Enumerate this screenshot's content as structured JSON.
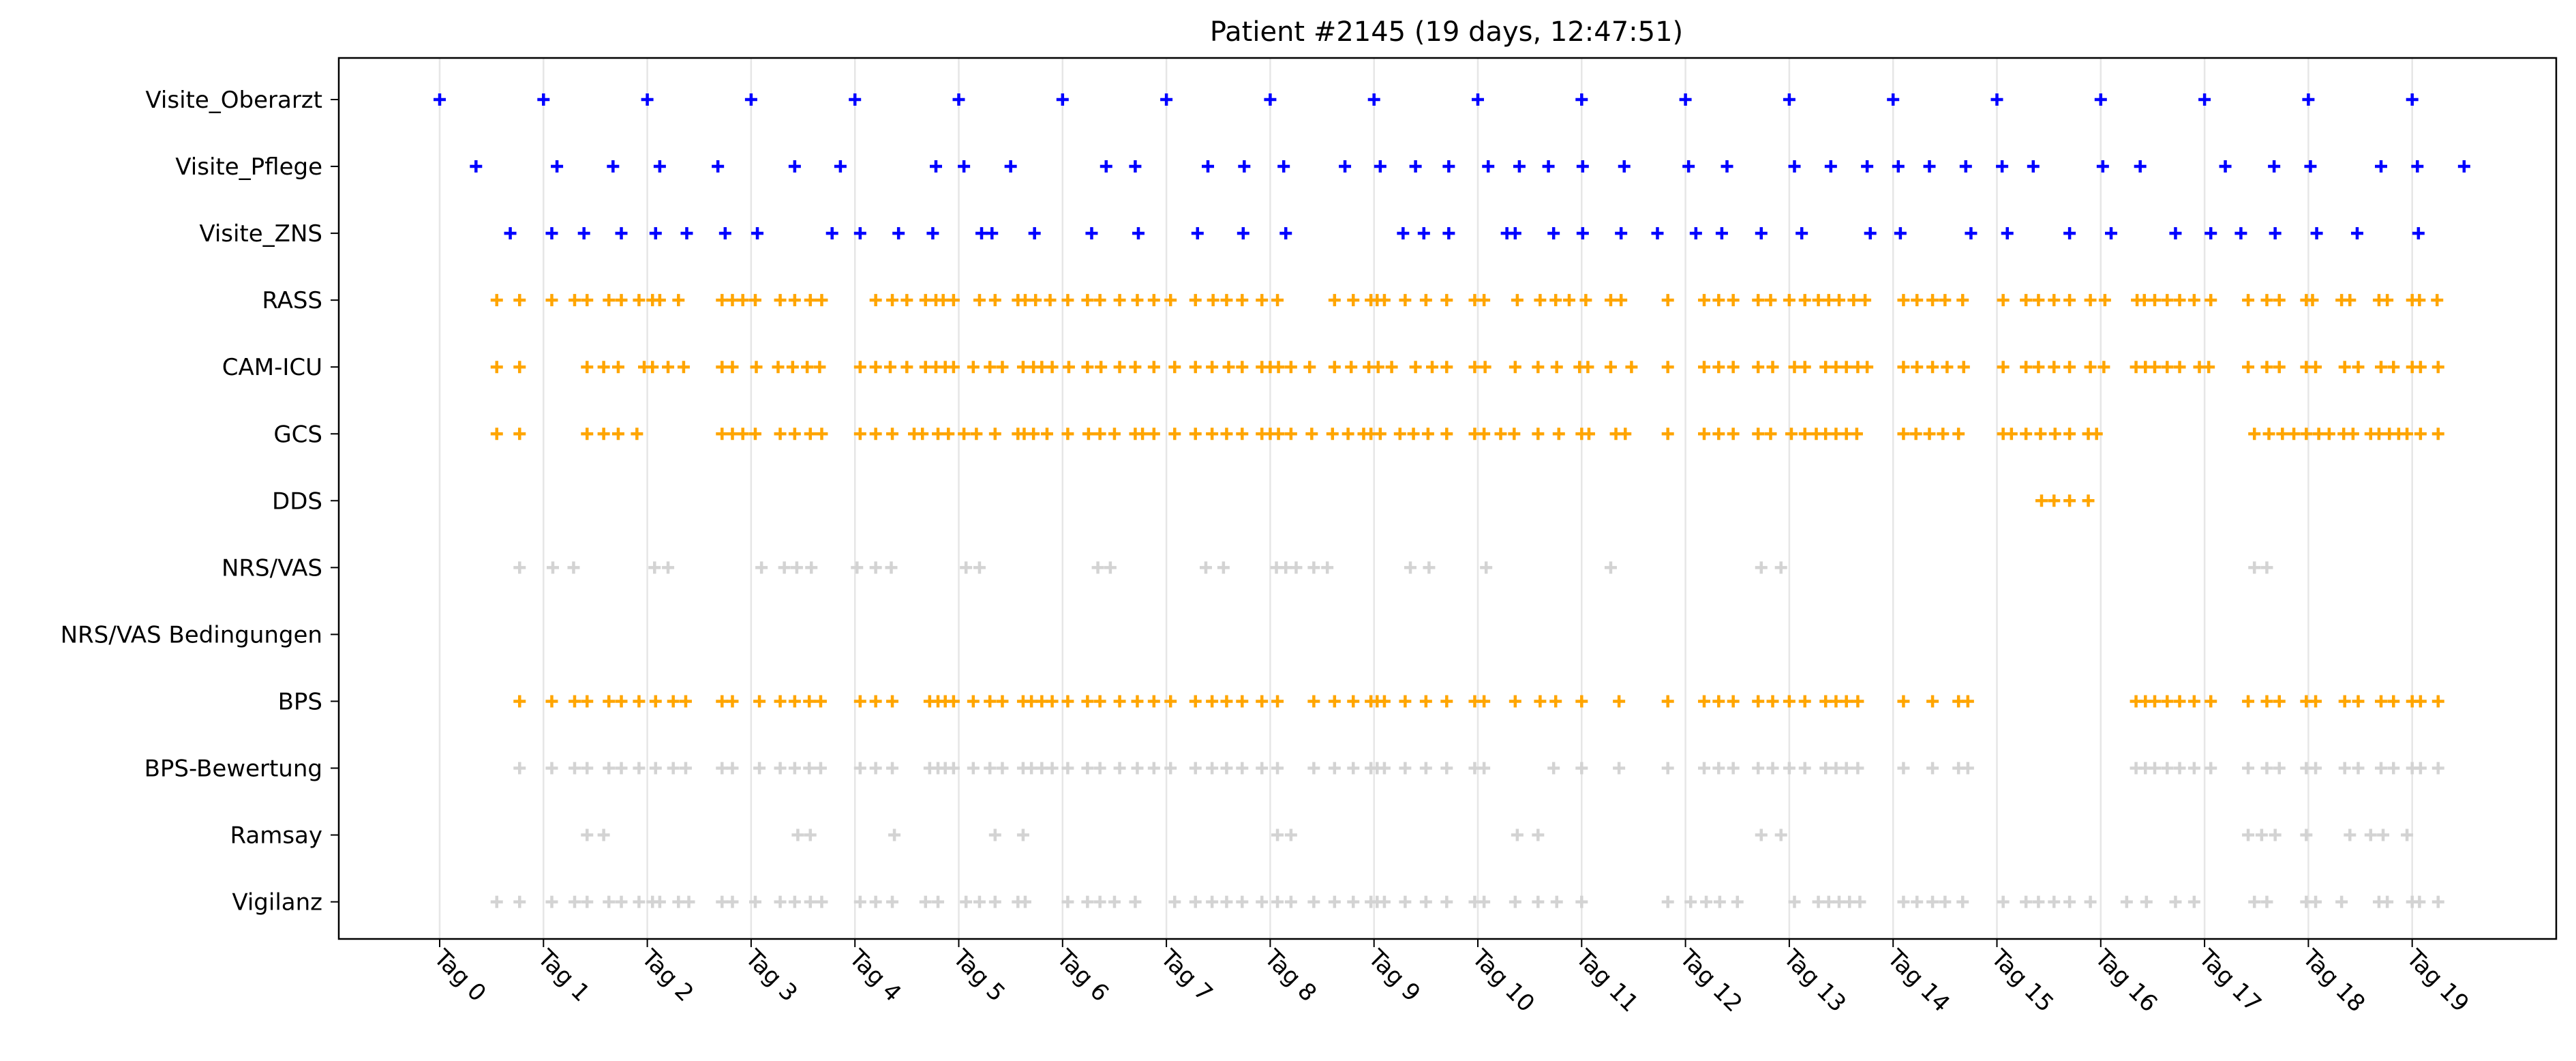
{
  "chart_data": {
    "type": "scatter",
    "title": "Patient #2145 (19 days, 12:47:51)",
    "xlabel": "",
    "ylabel": "",
    "x_unit": "days",
    "xlim": [
      -0.98,
      20.48
    ],
    "grid": "vertical lines at each day",
    "marker": "+",
    "x_tick_labels": [
      "Tag 0",
      "Tag 1",
      "Tag 2",
      "Tag 3",
      "Tag 4",
      "Tag 5",
      "Tag 6",
      "Tag 7",
      "Tag 8",
      "Tag 9",
      "Tag 10",
      "Tag 11",
      "Tag 12",
      "Tag 13",
      "Tag 14",
      "Tag 15",
      "Tag 16",
      "Tag 17",
      "Tag 18",
      "Tag 19"
    ],
    "x_ticks": [
      0,
      1,
      2,
      3,
      4,
      5,
      6,
      7,
      8,
      9,
      10,
      11,
      12,
      13,
      14,
      15,
      16,
      17,
      18,
      19
    ],
    "colors": {
      "visit": "#0000ff",
      "score": "#ffa500",
      "secondary": "#d3d3d3",
      "grid": "#e6e6e6"
    },
    "series": [
      {
        "name": "Visite_Oberarzt",
        "color": "#0000ff",
        "x": [
          0,
          1,
          2,
          3,
          4,
          5,
          6,
          7,
          8,
          9,
          10,
          11,
          12,
          13,
          14,
          15,
          16,
          17,
          18,
          19
        ]
      },
      {
        "name": "Visite_Pflege",
        "color": "#0000ff",
        "x": [
          0.35,
          1.13,
          1.67,
          2.12,
          2.68,
          3.42,
          3.86,
          4.78,
          5.05,
          5.5,
          6.42,
          6.7,
          7.4,
          7.75,
          8.13,
          8.72,
          9.06,
          9.4,
          9.72,
          10.1,
          10.4,
          10.68,
          11.01,
          11.41,
          12.03,
          12.4,
          13.05,
          13.4,
          13.75,
          14.05,
          14.35,
          14.7,
          15.05,
          15.35,
          16.02,
          16.38,
          17.2,
          17.67,
          18.02,
          18.7,
          19.05,
          19.5
        ]
      },
      {
        "name": "Visite_ZNS",
        "color": "#0000ff",
        "x": [
          0.68,
          1.08,
          1.39,
          1.75,
          2.08,
          2.38,
          2.75,
          3.06,
          3.78,
          4.05,
          4.42,
          4.75,
          5.22,
          5.32,
          5.73,
          6.28,
          6.73,
          7.3,
          7.74,
          8.15,
          9.28,
          9.48,
          9.72,
          10.28,
          10.36,
          10.73,
          11.01,
          11.38,
          11.73,
          12.1,
          12.35,
          12.73,
          13.12,
          13.78,
          14.07,
          14.75,
          15.1,
          15.7,
          16.1,
          16.72,
          17.06,
          17.35,
          17.68,
          18.08,
          18.47,
          19.06
        ]
      },
      {
        "name": "RASS",
        "color": "#ffa500",
        "x": [
          0.55,
          0.77,
          1.08,
          1.3,
          1.42,
          1.63,
          1.75,
          1.92,
          2.05,
          2.12,
          2.3,
          2.72,
          2.82,
          2.92,
          3.04,
          3.28,
          3.42,
          3.57,
          3.68,
          4.2,
          4.36,
          4.5,
          4.68,
          4.78,
          4.85,
          4.95,
          5.2,
          5.35,
          5.57,
          5.64,
          5.74,
          5.88,
          6.05,
          6.24,
          6.36,
          6.55,
          6.72,
          6.88,
          7.04,
          7.28,
          7.45,
          7.58,
          7.73,
          7.92,
          8.07,
          8.62,
          8.8,
          8.97,
          9.03,
          9.1,
          9.3,
          9.5,
          9.7,
          9.97,
          10.06,
          10.38,
          10.6,
          10.75,
          10.88,
          11.04,
          11.28,
          11.38,
          11.83,
          12.18,
          12.32,
          12.46,
          12.7,
          12.82,
          13.0,
          13.15,
          13.28,
          13.38,
          13.48,
          13.62,
          13.73,
          14.1,
          14.23,
          14.38,
          14.5,
          14.67,
          15.06,
          15.28,
          15.4,
          15.55,
          15.7,
          15.9,
          16.04,
          16.35,
          16.42,
          16.52,
          16.64,
          16.76,
          16.9,
          17.06,
          17.42,
          17.6,
          17.72,
          17.98,
          18.04,
          18.32,
          18.4,
          18.68,
          18.76,
          19.0,
          19.07,
          19.24
        ]
      },
      {
        "name": "CAM-ICU",
        "color": "#ffa500",
        "x": [
          0.55,
          0.77,
          1.42,
          1.58,
          1.72,
          1.97,
          2.05,
          2.2,
          2.35,
          2.72,
          2.82,
          3.05,
          3.26,
          3.4,
          3.54,
          3.66,
          4.05,
          4.2,
          4.34,
          4.5,
          4.68,
          4.78,
          4.87,
          4.95,
          5.14,
          5.3,
          5.42,
          5.62,
          5.72,
          5.8,
          5.9,
          6.06,
          6.24,
          6.37,
          6.55,
          6.7,
          6.88,
          7.08,
          7.28,
          7.44,
          7.6,
          7.73,
          7.92,
          8.0,
          8.08,
          8.2,
          8.38,
          8.62,
          8.78,
          8.95,
          9.04,
          9.17,
          9.4,
          9.56,
          9.7,
          9.97,
          10.07,
          10.36,
          10.58,
          10.76,
          10.98,
          11.06,
          11.28,
          11.48,
          11.83,
          12.18,
          12.32,
          12.46,
          12.7,
          12.84,
          13.05,
          13.15,
          13.35,
          13.45,
          13.55,
          13.66,
          13.75,
          14.1,
          14.23,
          14.38,
          14.52,
          14.68,
          15.06,
          15.28,
          15.4,
          15.55,
          15.7,
          15.9,
          16.03,
          16.34,
          16.43,
          16.52,
          16.64,
          16.76,
          16.95,
          17.04,
          17.42,
          17.6,
          17.72,
          17.98,
          18.07,
          18.35,
          18.48,
          18.7,
          18.82,
          19.0,
          19.08,
          19.25
        ]
      },
      {
        "name": "GCS",
        "color": "#ffa500",
        "x": [
          0.55,
          0.77,
          1.42,
          1.58,
          1.72,
          1.9,
          2.72,
          2.82,
          2.92,
          3.04,
          3.28,
          3.42,
          3.57,
          3.68,
          4.05,
          4.2,
          4.36,
          4.57,
          4.65,
          4.8,
          4.9,
          5.05,
          5.17,
          5.35,
          5.57,
          5.63,
          5.72,
          5.85,
          6.05,
          6.25,
          6.36,
          6.5,
          6.7,
          6.77,
          6.88,
          7.08,
          7.28,
          7.44,
          7.58,
          7.73,
          7.92,
          8.0,
          8.08,
          8.2,
          8.4,
          8.6,
          8.75,
          8.9,
          8.97,
          9.06,
          9.25,
          9.38,
          9.52,
          9.7,
          9.97,
          10.06,
          10.22,
          10.35,
          10.58,
          10.78,
          11.0,
          11.07,
          11.33,
          11.42,
          11.83,
          12.18,
          12.32,
          12.46,
          12.7,
          12.82,
          13.02,
          13.15,
          13.26,
          13.35,
          13.45,
          13.55,
          13.65,
          14.1,
          14.22,
          14.35,
          14.48,
          14.63,
          15.06,
          15.14,
          15.28,
          15.42,
          15.56,
          15.7,
          15.88,
          15.96,
          17.48,
          17.62,
          17.75,
          17.86,
          17.98,
          18.1,
          18.2,
          18.34,
          18.43,
          18.6,
          18.68,
          18.78,
          18.87,
          18.95,
          19.08,
          19.25
        ]
      },
      {
        "name": "DDS",
        "color": "#ffa500",
        "x": [
          15.43,
          15.55,
          15.7,
          15.88
        ]
      },
      {
        "name": "NRS/VAS",
        "color": "#d3d3d3",
        "x": [
          0.77,
          1.09,
          1.29,
          2.07,
          2.2,
          3.1,
          3.32,
          3.44,
          3.58,
          4.02,
          4.2,
          4.35,
          5.07,
          5.2,
          6.34,
          6.46,
          7.38,
          7.55,
          8.06,
          8.15,
          8.25,
          8.42,
          8.55,
          9.35,
          9.53,
          10.08,
          11.28,
          12.73,
          12.92,
          17.48,
          17.6
        ]
      },
      {
        "name": "NRS/VAS Bedingungen",
        "color": "#d3d3d3",
        "x": []
      },
      {
        "name": "BPS",
        "color": "#ffa500",
        "x": [
          0.77,
          1.08,
          1.3,
          1.42,
          1.63,
          1.75,
          1.92,
          2.08,
          2.25,
          2.37,
          2.72,
          2.82,
          3.08,
          3.28,
          3.42,
          3.56,
          3.67,
          4.05,
          4.2,
          4.36,
          4.72,
          4.8,
          4.87,
          4.95,
          5.14,
          5.3,
          5.42,
          5.62,
          5.7,
          5.8,
          5.9,
          6.05,
          6.24,
          6.36,
          6.55,
          6.72,
          6.88,
          7.04,
          7.28,
          7.44,
          7.58,
          7.73,
          7.92,
          8.07,
          8.42,
          8.62,
          8.8,
          8.97,
          9.03,
          9.1,
          9.3,
          9.5,
          9.7,
          9.97,
          10.06,
          10.36,
          10.6,
          10.75,
          11.0,
          11.36,
          11.83,
          12.18,
          12.32,
          12.46,
          12.7,
          12.84,
          13.0,
          13.15,
          13.35,
          13.45,
          13.55,
          13.66,
          14.1,
          14.38,
          14.63,
          14.72,
          16.34,
          16.43,
          16.52,
          16.64,
          16.76,
          16.9,
          17.06,
          17.42,
          17.6,
          17.72,
          17.98,
          18.07,
          18.35,
          18.48,
          18.7,
          18.82,
          19.0,
          19.08,
          19.25
        ]
      },
      {
        "name": "BPS-Bewertung",
        "color": "#d3d3d3",
        "x": [
          0.77,
          1.08,
          1.3,
          1.42,
          1.63,
          1.75,
          1.92,
          2.08,
          2.25,
          2.37,
          2.72,
          2.82,
          3.08,
          3.28,
          3.42,
          3.56,
          3.67,
          4.05,
          4.2,
          4.36,
          4.72,
          4.8,
          4.87,
          4.95,
          5.14,
          5.3,
          5.42,
          5.62,
          5.7,
          5.8,
          5.9,
          6.05,
          6.24,
          6.36,
          6.55,
          6.72,
          6.88,
          7.04,
          7.28,
          7.44,
          7.58,
          7.73,
          7.92,
          8.07,
          8.42,
          8.62,
          8.8,
          8.97,
          9.03,
          9.1,
          9.3,
          9.5,
          9.7,
          9.97,
          10.06,
          10.73,
          11.0,
          11.36,
          11.83,
          12.18,
          12.32,
          12.46,
          12.7,
          12.84,
          13.0,
          13.15,
          13.35,
          13.45,
          13.55,
          13.66,
          14.1,
          14.38,
          14.63,
          14.72,
          16.34,
          16.43,
          16.52,
          16.64,
          16.76,
          16.9,
          17.06,
          17.42,
          17.6,
          17.72,
          17.98,
          18.07,
          18.35,
          18.48,
          18.7,
          18.82,
          19.0,
          19.08,
          19.25
        ]
      },
      {
        "name": "Ramsay",
        "color": "#d3d3d3",
        "x": [
          1.42,
          1.58,
          3.45,
          3.57,
          4.38,
          5.35,
          5.62,
          8.07,
          8.2,
          10.38,
          10.58,
          12.73,
          12.92,
          17.42,
          17.55,
          17.68,
          17.98,
          18.4,
          18.6,
          18.72,
          18.95
        ]
      },
      {
        "name": "Vigilanz",
        "color": "#d3d3d3",
        "x": [
          0.55,
          0.77,
          1.08,
          1.3,
          1.42,
          1.63,
          1.75,
          1.92,
          2.05,
          2.12,
          2.3,
          2.4,
          2.72,
          2.82,
          3.04,
          3.28,
          3.42,
          3.57,
          3.68,
          4.05,
          4.2,
          4.36,
          4.68,
          4.8,
          5.07,
          5.2,
          5.35,
          5.57,
          5.64,
          6.05,
          6.24,
          6.36,
          6.5,
          6.7,
          7.08,
          7.28,
          7.44,
          7.58,
          7.73,
          7.92,
          8.07,
          8.2,
          8.42,
          8.62,
          8.8,
          8.97,
          9.03,
          9.1,
          9.3,
          9.5,
          9.7,
          9.97,
          10.06,
          10.36,
          10.58,
          10.76,
          11.0,
          11.83,
          12.05,
          12.2,
          12.33,
          12.5,
          13.05,
          13.28,
          13.38,
          13.48,
          13.58,
          13.68,
          14.1,
          14.23,
          14.38,
          14.5,
          14.67,
          15.06,
          15.28,
          15.4,
          15.55,
          15.7,
          15.9,
          16.25,
          16.44,
          16.72,
          16.9,
          17.48,
          17.6,
          17.98,
          18.07,
          18.32,
          18.68,
          18.76,
          19.0,
          19.07,
          19.25
        ]
      }
    ]
  }
}
